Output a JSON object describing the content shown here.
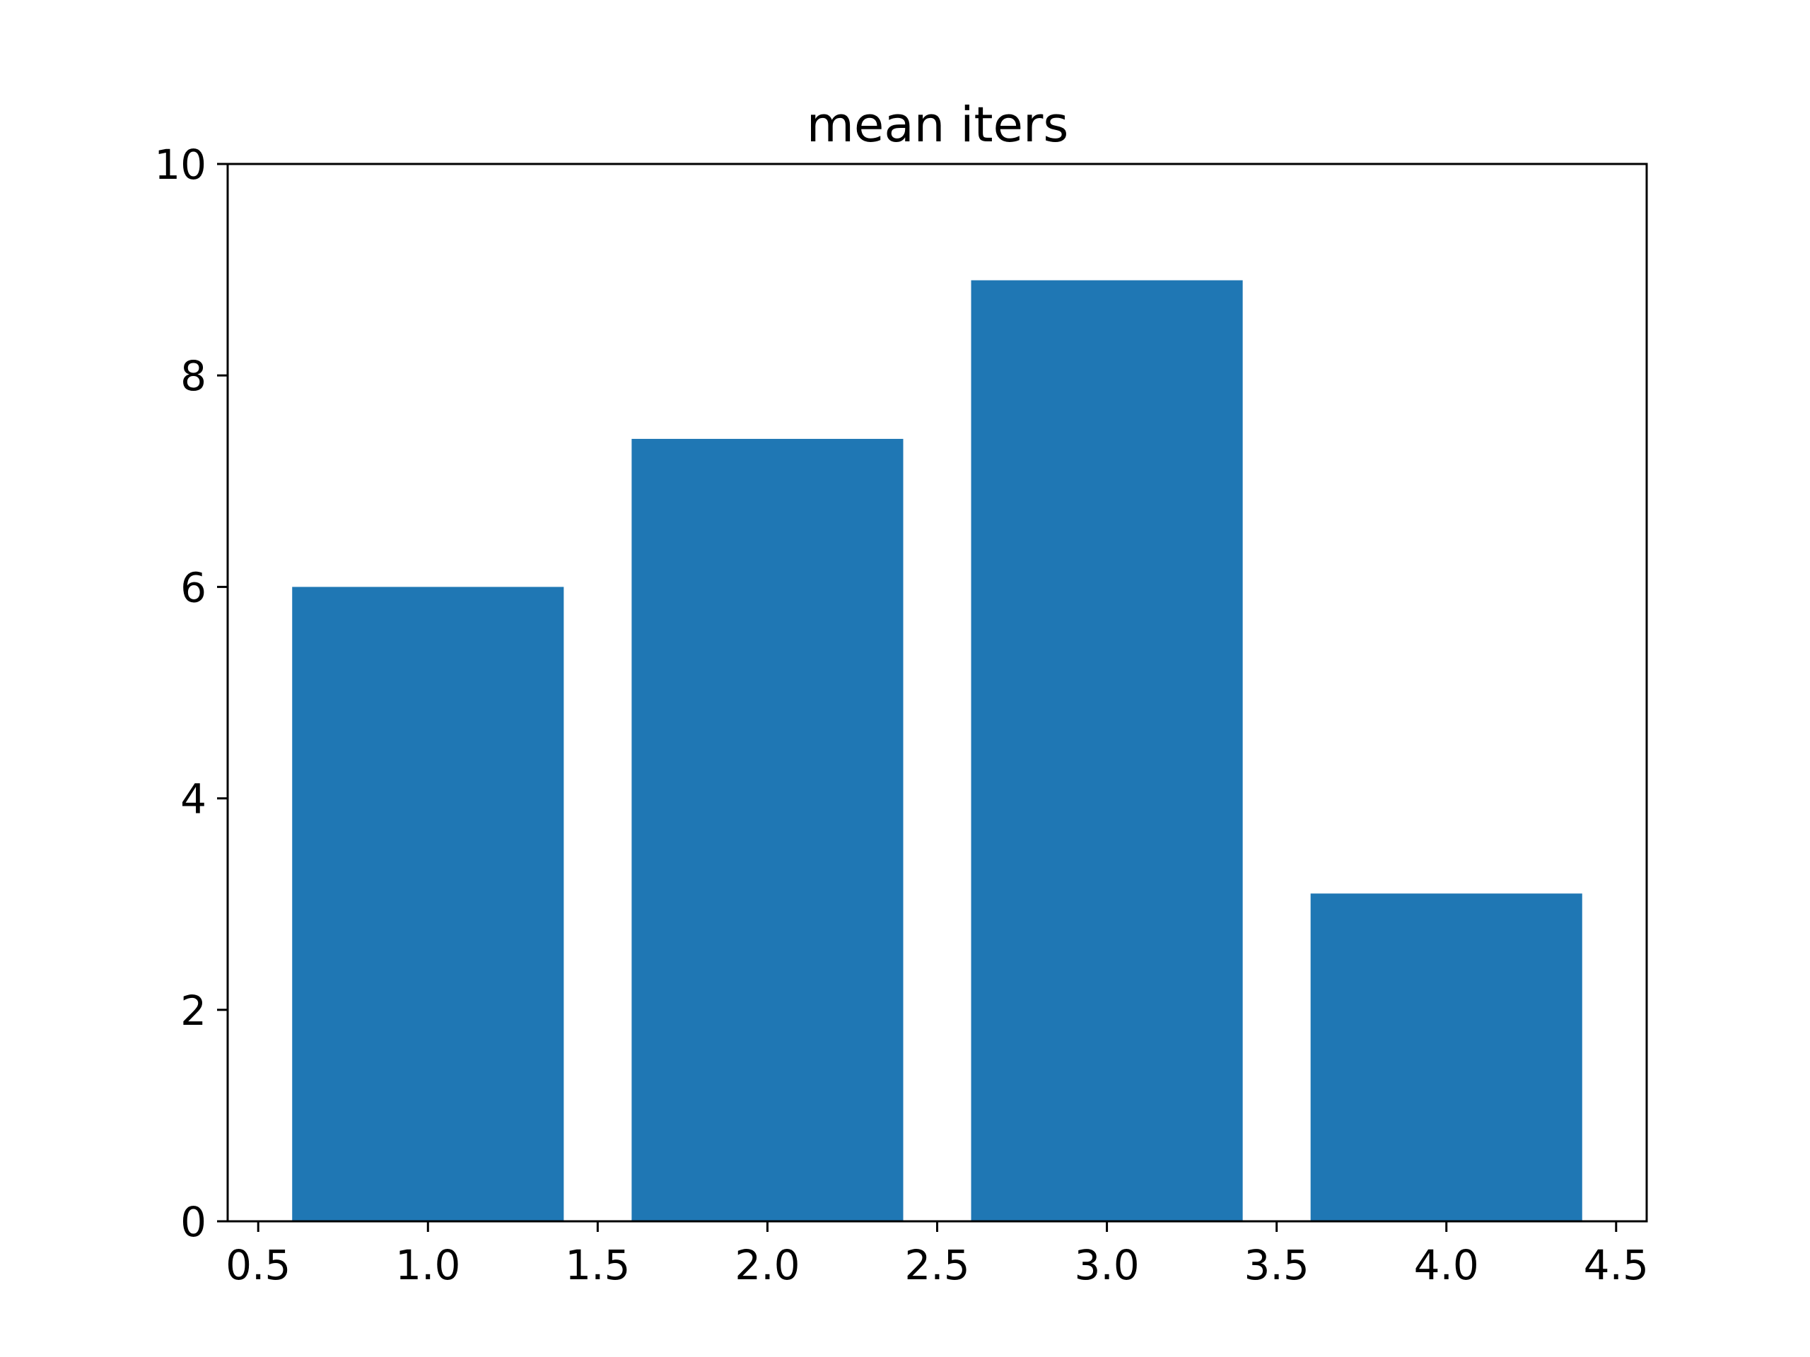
{
  "chart_data": {
    "type": "bar",
    "title": "mean iters",
    "xlabel": "",
    "ylabel": "",
    "x": [
      1.0,
      2.0,
      3.0,
      4.0
    ],
    "values": [
      6.0,
      7.4,
      8.9,
      3.1
    ],
    "bar_width": 0.8,
    "xlim": [
      0.41,
      4.59
    ],
    "ylim": [
      0,
      10
    ],
    "xticks": [
      "0.5",
      "1.0",
      "1.5",
      "2.0",
      "2.5",
      "3.0",
      "3.5",
      "4.0",
      "4.5"
    ],
    "yticks": [
      "0",
      "2",
      "4",
      "6",
      "8",
      "10"
    ],
    "grid": false,
    "bar_color": "#1f77b4"
  }
}
